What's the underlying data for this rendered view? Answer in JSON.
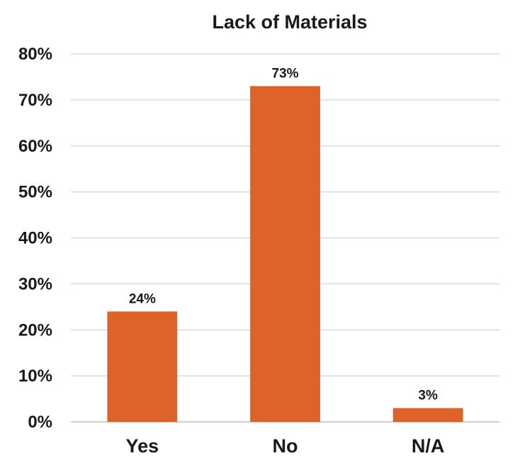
{
  "chart_data": {
    "type": "bar",
    "title": "Lack of Materials",
    "xlabel": "",
    "ylabel": "",
    "categories": [
      "Yes",
      "No",
      "N/A"
    ],
    "values": [
      24,
      73,
      3
    ],
    "data_labels": [
      "24%",
      "73%",
      "3%"
    ],
    "ylim": [
      0,
      80
    ],
    "y_ticks": [
      0,
      10,
      20,
      30,
      40,
      50,
      60,
      70,
      80
    ],
    "y_tick_labels": [
      "0%",
      "10%",
      "20%",
      "30%",
      "40%",
      "50%",
      "60%",
      "70%",
      "80%"
    ],
    "grid": true,
    "legend": "none",
    "bar_color": "#DE6329",
    "text_color": "#1a1a1a",
    "gridline_color": "#d9d9d9"
  }
}
